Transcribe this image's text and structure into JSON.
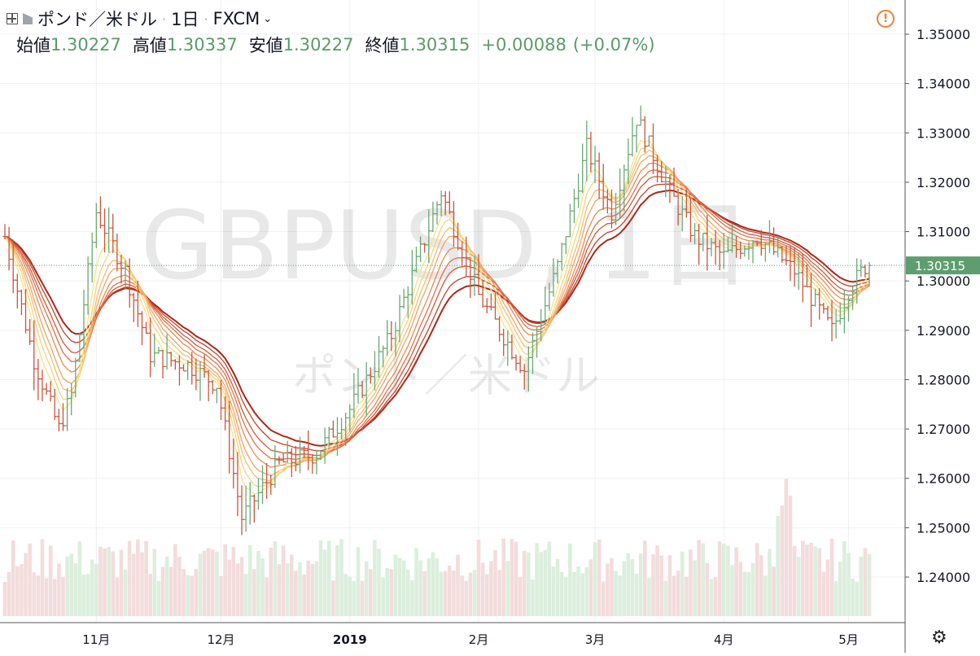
{
  "header": {
    "symbol": "ポンド／米ドル",
    "interval": "1日",
    "exchange": "FXCM",
    "ohlc": [
      {
        "label": "始値",
        "value": "1.30227"
      },
      {
        "label": "高値",
        "value": "1.30337"
      },
      {
        "label": "安値",
        "value": "1.30227"
      },
      {
        "label": "終値",
        "value": "1.30315"
      }
    ],
    "change": "+0.00088",
    "change_pct": "(+0.07%)"
  },
  "watermark": {
    "symbol": "GBPUSD, 1日",
    "description": "ポンド／米ドル"
  },
  "colors": {
    "up": "#6aa874",
    "down": "#c9553c",
    "grid": "#eef0f3",
    "volume_up": "#dceedd",
    "volume_down": "#f3dcdc",
    "ribbon": [
      "#a82a1a",
      "#c3442e",
      "#d25a3c",
      "#df7049",
      "#e88a57",
      "#efa465",
      "#f3bd73",
      "#f6d27f",
      "#f7e388"
    ],
    "last_price_bg": "#5e9e6e"
  },
  "icons": [
    "add-square-icon",
    "flag-icon",
    "chevron-down-icon",
    "alert-icon",
    "gear-icon"
  ],
  "chart_data": {
    "type": "candlestick",
    "title": "ポンド／米ドル · 1日 · FXCM",
    "y_ticks": [
      "1.35000",
      "1.34000",
      "1.33000",
      "1.32000",
      "1.31000",
      "1.30000",
      "1.29000",
      "1.28000",
      "1.27000",
      "1.26000",
      "1.25000",
      "1.24000"
    ],
    "ylim": [
      1.2325,
      1.3545
    ],
    "last_price": 1.30315,
    "last_price_label": "1.30315",
    "x_labels": [
      "11月",
      "12月",
      "2019",
      "2月",
      "3月",
      "4月",
      "5月"
    ],
    "x_label_days": [
      22,
      52,
      83,
      114,
      142,
      173,
      203
    ],
    "day_span": [
      0,
      208
    ],
    "volume": "per-bar volume histogram in background (relative, lower region of plot)",
    "ribbon_series_count": 9,
    "ohlc_waypoints": [
      {
        "day": 0,
        "price": 1.309
      },
      {
        "day": 7,
        "price": 1.284
      },
      {
        "day": 13,
        "price": 1.27
      },
      {
        "day": 16,
        "price": 1.277
      },
      {
        "day": 22,
        "price": 1.314
      },
      {
        "day": 29,
        "price": 1.302
      },
      {
        "day": 35,
        "price": 1.285
      },
      {
        "day": 44,
        "price": 1.283
      },
      {
        "day": 51,
        "price": 1.279
      },
      {
        "day": 57,
        "price": 1.252
      },
      {
        "day": 66,
        "price": 1.263
      },
      {
        "day": 75,
        "price": 1.265
      },
      {
        "day": 83,
        "price": 1.274
      },
      {
        "day": 93,
        "price": 1.289
      },
      {
        "day": 105,
        "price": 1.318
      },
      {
        "day": 114,
        "price": 1.297
      },
      {
        "day": 125,
        "price": 1.282
      },
      {
        "day": 133,
        "price": 1.303
      },
      {
        "day": 140,
        "price": 1.327
      },
      {
        "day": 146,
        "price": 1.314
      },
      {
        "day": 152,
        "price": 1.333
      },
      {
        "day": 160,
        "price": 1.318
      },
      {
        "day": 166,
        "price": 1.309
      },
      {
        "day": 173,
        "price": 1.305
      },
      {
        "day": 181,
        "price": 1.309
      },
      {
        "day": 190,
        "price": 1.302
      },
      {
        "day": 199,
        "price": 1.29
      },
      {
        "day": 203,
        "price": 1.298
      },
      {
        "day": 207,
        "price": 1.303
      }
    ]
  }
}
